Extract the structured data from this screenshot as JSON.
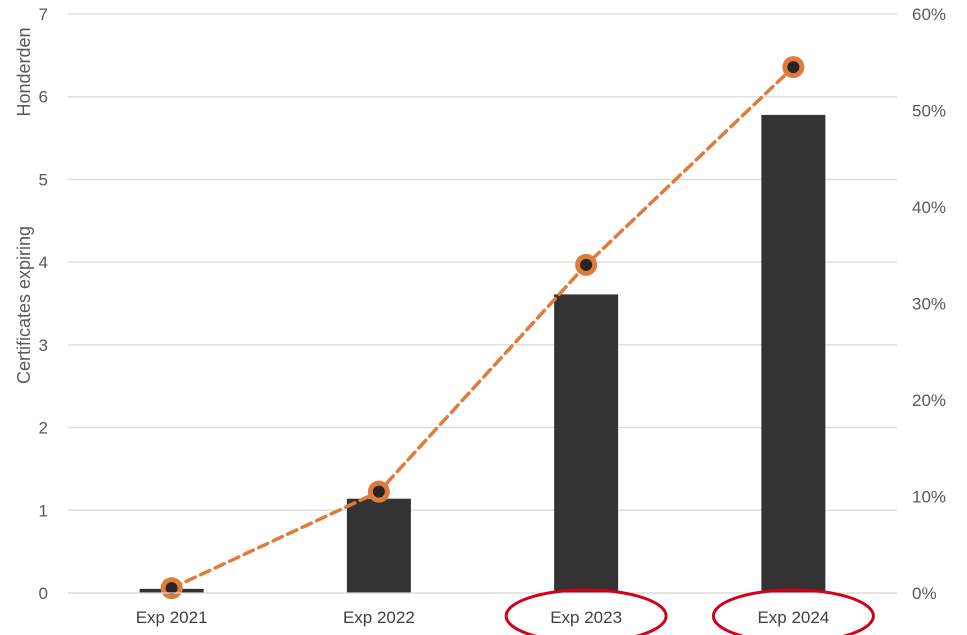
{
  "chart_data": {
    "type": "bar",
    "categories": [
      "Exp 2021",
      "Exp 2022",
      "Exp 2023",
      "Exp 2024"
    ],
    "series": [
      {
        "name": "",
        "kind": "bar",
        "axis": "left",
        "values": [
          0.05,
          1.14,
          3.61,
          5.78
        ],
        "color": "#333333"
      },
      {
        "name": "",
        "kind": "line",
        "axis": "right",
        "style": "dashed",
        "values": [
          0.005,
          0.105,
          0.34,
          0.545
        ],
        "color": "#e07b39"
      }
    ],
    "yaxis_left": {
      "ylabel_top": "Honderden",
      "ylabel": "Certificates expiring",
      "ylim": [
        0,
        7
      ],
      "ticks": [
        "0",
        "1",
        "2",
        "3",
        "4",
        "5",
        "6",
        "7"
      ]
    },
    "yaxis_right": {
      "ylim": [
        0,
        0.6
      ],
      "ticks": [
        "0%",
        "10%",
        "20%",
        "30%",
        "40%",
        "50%",
        "60%"
      ]
    },
    "grid": true,
    "highlighted_categories": [
      "Exp 2023",
      "Exp 2024"
    ],
    "highlight_color": "#d0021b"
  }
}
